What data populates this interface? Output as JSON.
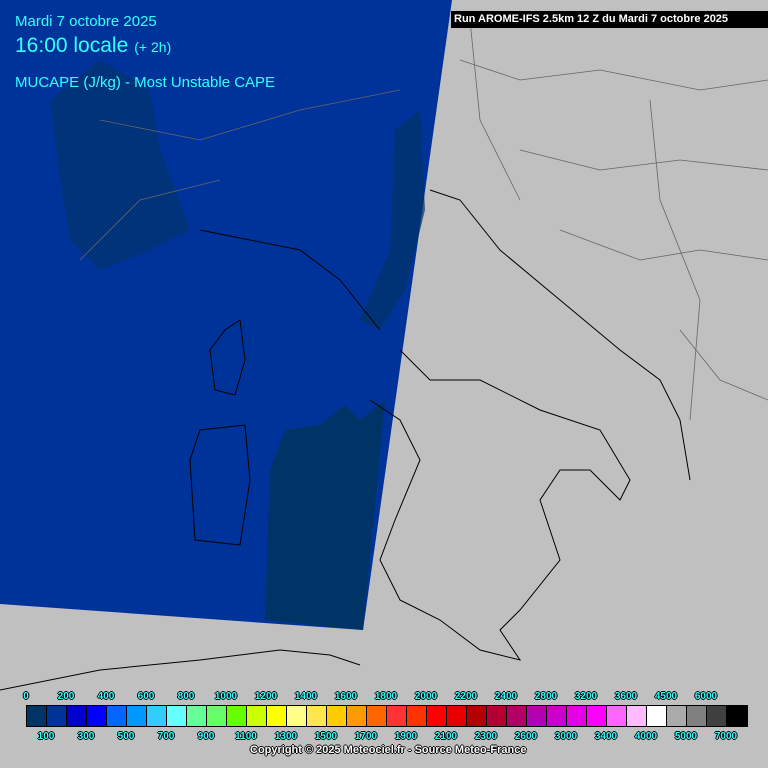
{
  "header": {
    "date": "Mardi 7 octobre 2025",
    "time": "16:00 locale",
    "offset": "(+ 2h)",
    "parameter": "MUCAPE (J/kg) - Most Unstable CAPE"
  },
  "run_info": "Run AROME-IFS 2.5km 12 Z du Mardi 7 octobre 2025",
  "legend": {
    "colors": [
      "#003366",
      "#003399",
      "#0000cc",
      "#0000ff",
      "#0066ff",
      "#0099ff",
      "#33ccff",
      "#66ffff",
      "#66ff99",
      "#66ff66",
      "#66ff00",
      "#ccff00",
      "#ffff00",
      "#ffff88",
      "#ffe64d",
      "#ffcc00",
      "#ff9900",
      "#ff6600",
      "#ff3333",
      "#ff3300",
      "#ff0000",
      "#e60000",
      "#b30000",
      "#b30033",
      "#b30066",
      "#b300b3",
      "#cc00cc",
      "#e600e6",
      "#ff00ff",
      "#ff66ff",
      "#ffbbff",
      "#ffffff",
      "#aaaaaa",
      "#808080",
      "#404040",
      "#000000"
    ],
    "top_labels": [
      "0",
      "200",
      "400",
      "600",
      "800",
      "1000",
      "1200",
      "1400",
      "1600",
      "1800",
      "2000",
      "2200",
      "2400",
      "2800",
      "3200",
      "3600",
      "4500",
      "6000"
    ],
    "bottom_labels": [
      "100",
      "300",
      "500",
      "700",
      "900",
      "1100",
      "1300",
      "1500",
      "1700",
      "1900",
      "2100",
      "2300",
      "2600",
      "3000",
      "3400",
      "4000",
      "5000",
      "7000"
    ]
  },
  "copyright": "Copyright © 2025 Meteociel.fr - Source Meteo-France",
  "map_colors": {
    "land": "#c0c0c0",
    "cape_0_100": "#003366",
    "cape_100_200": "#003399",
    "borders": "#555555"
  }
}
